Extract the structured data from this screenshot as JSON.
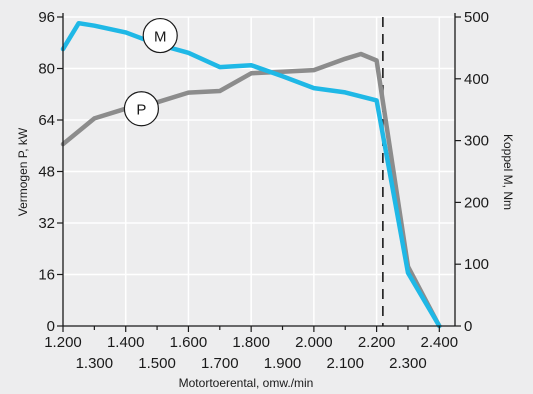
{
  "chart_data": {
    "type": "line",
    "xlabel": "Motortoerental, omw./min",
    "ylabel_left": "Vermogen P, kW",
    "ylabel_right": "Koppel M, Nm",
    "x_ticks_top_row": [
      "1.200",
      "1.400",
      "1.600",
      "1.800",
      "2.000",
      "2.200",
      "2.400"
    ],
    "x_ticks_top_values": [
      1200,
      1400,
      1600,
      1800,
      2000,
      2200,
      2400
    ],
    "x_ticks_bottom_row": [
      "1.300",
      "1.500",
      "1.700",
      "1.900",
      "2.100",
      "2.300"
    ],
    "x_ticks_bottom_values": [
      1300,
      1500,
      1700,
      1900,
      2100,
      2300
    ],
    "xlim": [
      1200,
      2450
    ],
    "y_left_ticks": [
      "0",
      "16",
      "32",
      "48",
      "64",
      "80",
      "96"
    ],
    "y_left_values": [
      0,
      16,
      32,
      48,
      64,
      80,
      96
    ],
    "ylim_left": [
      0,
      96
    ],
    "y_right_ticks": [
      "0",
      "100",
      "200",
      "300",
      "400",
      "500"
    ],
    "y_right_values": [
      0,
      100,
      200,
      300,
      400,
      500
    ],
    "ylim_right": [
      0,
      500
    ],
    "vline_x": 2220,
    "series": [
      {
        "name": "P",
        "axis": "left",
        "color": "#8c8c8c",
        "points": [
          [
            1200,
            56.5
          ],
          [
            1300,
            64.5
          ],
          [
            1400,
            67.5
          ],
          [
            1500,
            69.5
          ],
          [
            1600,
            72.5
          ],
          [
            1700,
            73
          ],
          [
            1800,
            78.5
          ],
          [
            1900,
            79
          ],
          [
            2000,
            79.5
          ],
          [
            2100,
            83
          ],
          [
            2150,
            84.5
          ],
          [
            2200,
            82.5
          ],
          [
            2300,
            18.5
          ],
          [
            2400,
            0
          ]
        ],
        "label": "P",
        "label_at": [
          1450,
          67.5
        ]
      },
      {
        "name": "M",
        "axis": "right",
        "color": "#1fb8e6",
        "points": [
          [
            1200,
            448
          ],
          [
            1250,
            490
          ],
          [
            1300,
            486
          ],
          [
            1400,
            475
          ],
          [
            1500,
            456
          ],
          [
            1600,
            442
          ],
          [
            1700,
            419
          ],
          [
            1800,
            422
          ],
          [
            1900,
            404
          ],
          [
            2000,
            385
          ],
          [
            2100,
            378
          ],
          [
            2200,
            365
          ],
          [
            2300,
            86
          ],
          [
            2400,
            0
          ]
        ],
        "label": "M",
        "label_at": [
          1510,
          470
        ]
      }
    ]
  }
}
